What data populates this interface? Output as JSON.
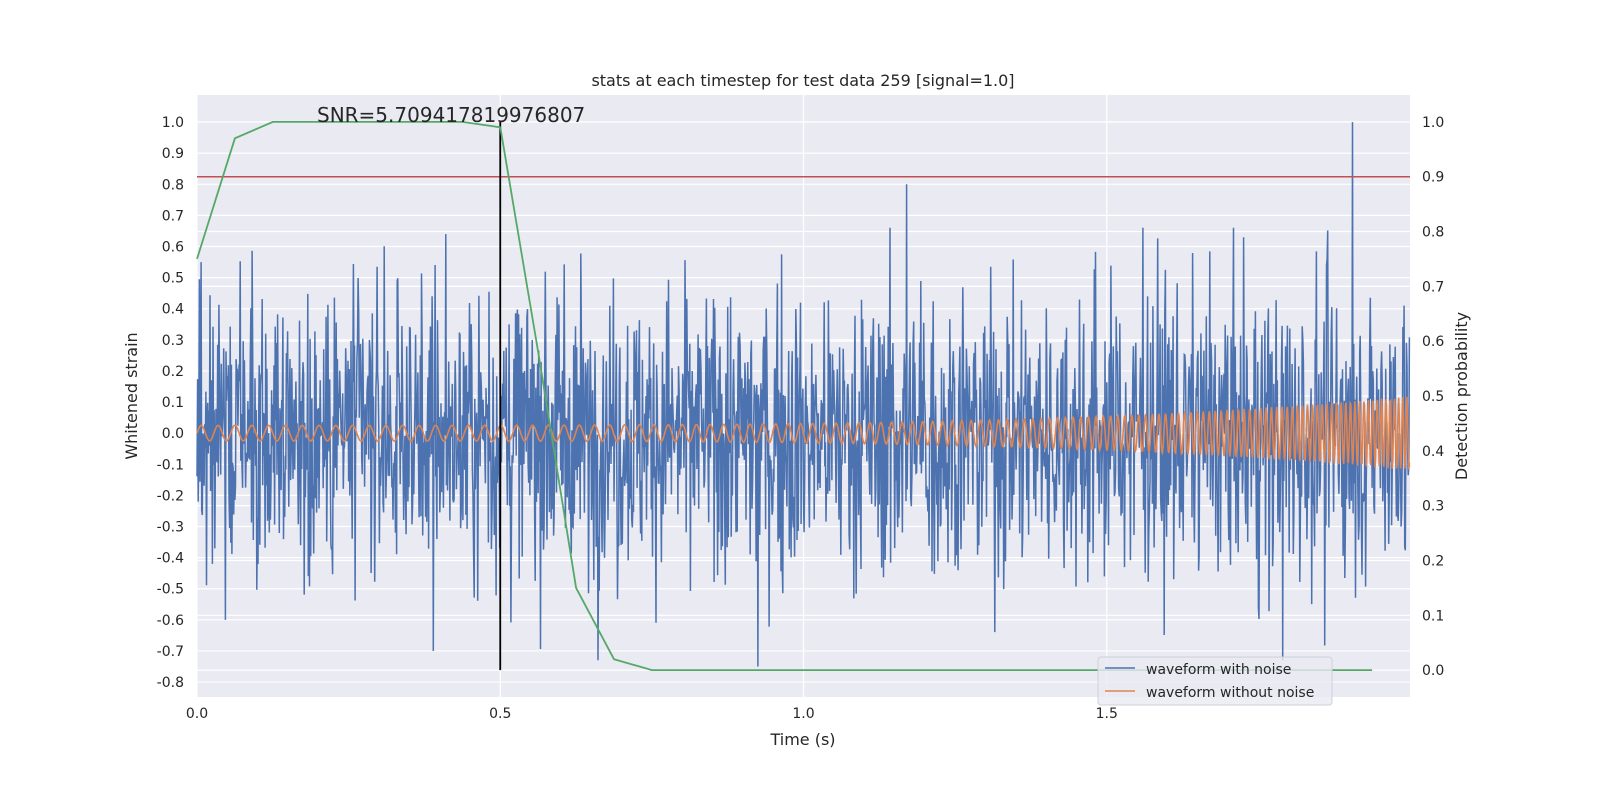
{
  "chart_data": {
    "type": "line",
    "title": "stats at each timestep for test data 259 [signal=1.0]",
    "annotation": "SNR=5.709417819976807",
    "xlabel": "Time (s)",
    "ylabel_left": "Whitened strain",
    "ylabel_right": "Detection probability",
    "xlim": [
      0.0,
      2.0
    ],
    "ylim_left": [
      -0.848,
      1.087
    ],
    "ylim_right": [
      -0.049,
      1.049
    ],
    "xticks": [
      "0.0",
      "0.5",
      "1.0",
      "1.5"
    ],
    "yticks_left": [
      "-0.8",
      "-0.7",
      "-0.6",
      "-0.5",
      "-0.4",
      "-0.3",
      "-0.2",
      "-0.1",
      "0.0",
      "0.1",
      "0.2",
      "0.3",
      "0.4",
      "0.5",
      "0.6",
      "0.7",
      "0.8",
      "0.9",
      "1.0"
    ],
    "yticks_right": [
      "0.0",
      "0.1",
      "0.2",
      "0.3",
      "0.4",
      "0.5",
      "0.6",
      "0.7",
      "0.8",
      "0.9",
      "1.0"
    ],
    "grid": true,
    "legend_position": "bottom-right",
    "series": [
      {
        "name": "waveform with noise",
        "axis": "left",
        "color": "#4C72B0",
        "noise_std": 0.2,
        "notable_peaks": [
          {
            "x": 1.905,
            "y": 1.0
          },
          {
            "x": 1.17,
            "y": 0.8
          },
          {
            "x": 0.925,
            "y": -0.75
          },
          {
            "x": 0.39,
            "y": -0.7
          },
          {
            "x": 1.79,
            "y": -0.73
          },
          {
            "x": 0.41,
            "y": 0.64
          },
          {
            "x": 1.56,
            "y": 0.66
          }
        ]
      },
      {
        "name": "waveform without noise",
        "axis": "left",
        "color": "#DD8452",
        "amplitude_start": 0.025,
        "amplitude_end": 0.12
      },
      {
        "axis": "right",
        "color": "#55A868",
        "x": [
          0,
          0.0625,
          0.125,
          0.1875,
          0.25,
          0.3125,
          0.375,
          0.4375,
          0.5,
          0.5625,
          0.625,
          0.6875,
          0.75,
          0.8125,
          0.875,
          0.9375,
          1.0,
          1.0625,
          1.125,
          1.1875,
          1.25,
          1.3125,
          1.375,
          1.4375,
          1.5,
          1.5625,
          1.625,
          1.6875,
          1.75,
          1.8125,
          1.875,
          1.9375
        ],
        "y": [
          0.75,
          0.97,
          1.0,
          1.0,
          1.0,
          1.0,
          1.0,
          1.0,
          0.99,
          0.58,
          0.15,
          0.02,
          0.0,
          0.0,
          0.0,
          0.0,
          0.0,
          0.0,
          0.0,
          0.0,
          0.0,
          0.0,
          0.0,
          0.0,
          0.0,
          0.0,
          0.0,
          0.0,
          0.0,
          0.0,
          0.0,
          0.0
        ]
      }
    ],
    "threshold": {
      "axis": "right",
      "y": 0.9,
      "color": "#C44E52"
    },
    "vertical_marker": {
      "x": 0.5,
      "y_range": [
        0.0,
        1.0
      ],
      "axis": "right",
      "color": "#000000"
    }
  }
}
